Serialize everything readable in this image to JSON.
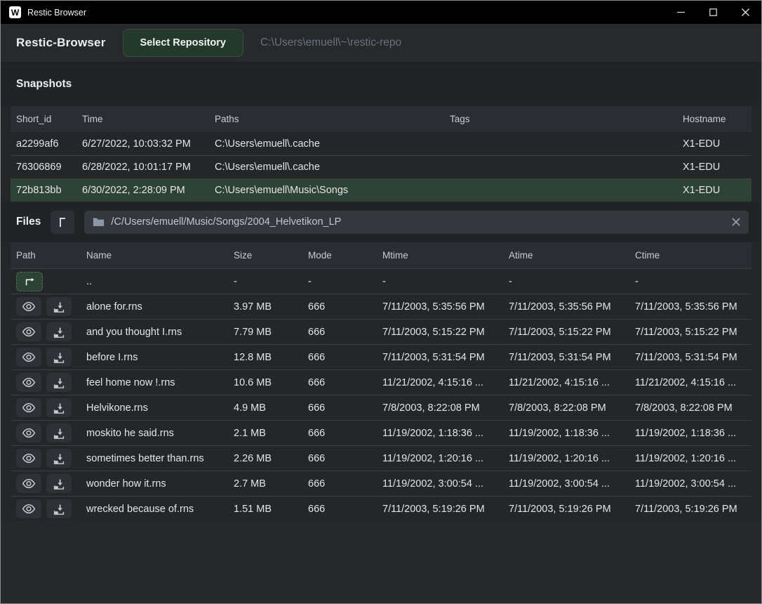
{
  "window": {
    "title": "Restic Browser",
    "logo_letter": "W"
  },
  "header": {
    "app_title": "Restic-Browser",
    "select_repository_label": "Select Repository",
    "repository_path": "C:\\Users\\emuell\\~\\restic-repo"
  },
  "snapshots": {
    "title": "Snapshots",
    "columns": {
      "short_id": "Short_id",
      "time": "Time",
      "paths": "Paths",
      "tags": "Tags",
      "hostname": "Hostname"
    },
    "rows": [
      {
        "short_id": "a2299af6",
        "time": "6/27/2022, 10:03:32 PM",
        "paths": "C:\\Users\\emuell\\.cache",
        "tags": "",
        "hostname": "X1-EDU",
        "selected": false
      },
      {
        "short_id": "76306869",
        "time": "6/28/2022, 10:01:17 PM",
        "paths": "C:\\Users\\emuell\\.cache",
        "tags": "",
        "hostname": "X1-EDU",
        "selected": false
      },
      {
        "short_id": "72b813bb",
        "time": "6/30/2022, 2:28:09 PM",
        "paths": "C:\\Users\\emuell\\Music\\Songs",
        "tags": "",
        "hostname": "X1-EDU",
        "selected": true
      }
    ]
  },
  "files": {
    "title": "Files",
    "path_value": "/C/Users/emuell/Music/Songs/2004_Helvetikon_LP",
    "columns": {
      "path": "Path",
      "name": "Name",
      "size": "Size",
      "mode": "Mode",
      "mtime": "Mtime",
      "atime": "Atime",
      "ctime": "Ctime"
    },
    "parent_row": {
      "name": "..",
      "size": "-",
      "mode": "-",
      "mtime": "-",
      "atime": "-",
      "ctime": "-"
    },
    "rows": [
      {
        "name": "alone for.rns",
        "size": "3.97 MB",
        "mode": "666",
        "mtime": "7/11/2003, 5:35:56 PM",
        "atime": "7/11/2003, 5:35:56 PM",
        "ctime": "7/11/2003, 5:35:56 PM"
      },
      {
        "name": "and you thought I.rns",
        "size": "7.79 MB",
        "mode": "666",
        "mtime": "7/11/2003, 5:15:22 PM",
        "atime": "7/11/2003, 5:15:22 PM",
        "ctime": "7/11/2003, 5:15:22 PM"
      },
      {
        "name": "before I.rns",
        "size": "12.8 MB",
        "mode": "666",
        "mtime": "7/11/2003, 5:31:54 PM",
        "atime": "7/11/2003, 5:31:54 PM",
        "ctime": "7/11/2003, 5:31:54 PM"
      },
      {
        "name": "feel home now !.rns",
        "size": "10.6 MB",
        "mode": "666",
        "mtime": "11/21/2002, 4:15:16 ...",
        "atime": "11/21/2002, 4:15:16 ...",
        "ctime": "11/21/2002, 4:15:16 ..."
      },
      {
        "name": "Helvikone.rns",
        "size": "4.9 MB",
        "mode": "666",
        "mtime": "7/8/2003, 8:22:08 PM",
        "atime": "7/8/2003, 8:22:08 PM",
        "ctime": "7/8/2003, 8:22:08 PM"
      },
      {
        "name": "moskito he said.rns",
        "size": "2.1 MB",
        "mode": "666",
        "mtime": "11/19/2002, 1:18:36 ...",
        "atime": "11/19/2002, 1:18:36 ...",
        "ctime": "11/19/2002, 1:18:36 ..."
      },
      {
        "name": "sometimes better than.rns",
        "size": "2.26 MB",
        "mode": "666",
        "mtime": "11/19/2002, 1:20:16 ...",
        "atime": "11/19/2002, 1:20:16 ...",
        "ctime": "11/19/2002, 1:20:16 ..."
      },
      {
        "name": "wonder how it.rns",
        "size": "2.7 MB",
        "mode": "666",
        "mtime": "11/19/2002, 3:00:54 ...",
        "atime": "11/19/2002, 3:00:54 ...",
        "ctime": "11/19/2002, 3:00:54 ..."
      },
      {
        "name": "wrecked because of.rns",
        "size": "1.51 MB",
        "mode": "666",
        "mtime": "7/11/2003, 5:19:26 PM",
        "atime": "7/11/2003, 5:19:26 PM",
        "ctime": "7/11/2003, 5:19:26 PM"
      }
    ]
  },
  "colors": {
    "titlebar": "#000000",
    "window_background": "#242628",
    "accent_green_button": "#25382c",
    "selected_row_green": "#2e4237",
    "folder_icon": "#8b97a5"
  }
}
